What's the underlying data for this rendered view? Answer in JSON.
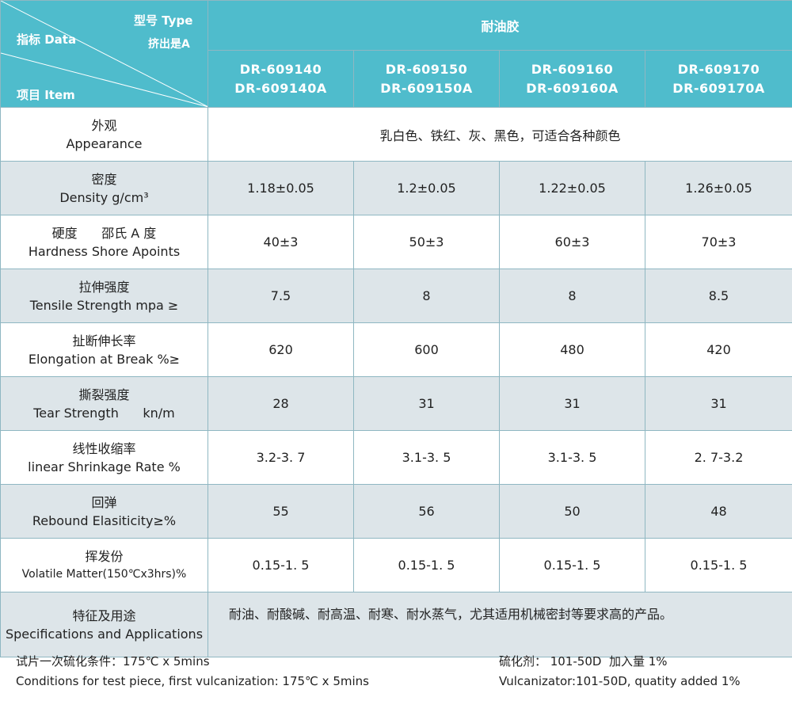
{
  "header": {
    "corner_type_label": "型号 Type",
    "corner_extrusion_label": "挤出是A",
    "corner_data_label": "指标 Data",
    "corner_item_label": "项目 Item",
    "group_title": "耐油胶",
    "models": [
      {
        "line1": "DR-609140",
        "line2": "DR-609140A"
      },
      {
        "line1": "DR-609150",
        "line2": "DR-609150A"
      },
      {
        "line1": "DR-609160",
        "line2": "DR-609160A"
      },
      {
        "line1": "DR-609170",
        "line2": "DR-609170A"
      }
    ]
  },
  "rows": [
    {
      "zh": "外观",
      "en": "Appearance",
      "merged": "乳白色、铁红、灰、黑色，可适合各种颜色"
    },
    {
      "zh": "密度",
      "en": "Density  g/cm³",
      "values": [
        "1.18±0.05",
        "1.2±0.05",
        "1.22±0.05",
        "1.26±0.05"
      ]
    },
    {
      "zh": "硬度      邵氏 A 度",
      "en": "Hardness  Shore Apoints",
      "values": [
        "40±3",
        "50±3",
        "60±3",
        "70±3"
      ]
    },
    {
      "zh": "拉伸强度",
      "en": "Tensile Strength  mpa ≥",
      "values": [
        "7.5",
        "8",
        "8",
        "8.5"
      ]
    },
    {
      "zh": "扯断伸长率",
      "en": "Elongation at Break %≥",
      "values": [
        "620",
        "600",
        "480",
        "420"
      ]
    },
    {
      "zh": "撕裂强度",
      "en": "Tear Strength      kn/m",
      "values": [
        "28",
        "31",
        "31",
        "31"
      ]
    },
    {
      "zh": "线性收缩率",
      "en": "linear Shrinkage Rate %",
      "values": [
        "3.2-3. 7",
        "3.1-3. 5",
        "3.1-3. 5",
        "2. 7-3.2"
      ]
    },
    {
      "zh": "回弹",
      "en": "Rebound Elasiticity≥%",
      "values": [
        "55",
        "56",
        "50",
        "48"
      ]
    },
    {
      "zh": "挥发份",
      "en": "Volatile Matter(150℃x3hrs)%",
      "values": [
        "0.15-1. 5",
        "0.15-1. 5",
        "0.15-1. 5",
        "0.15-1. 5"
      ]
    },
    {
      "zh": "特征及用途",
      "en": "Specifications and Applications",
      "merged": "耐油、耐酸碱、耐高温、耐寒、耐水蒸气，尤其适用机械密封等要求高的产品。"
    }
  ],
  "footer": {
    "conditions_zh": "试片一次硫化条件：175℃ x 5mins",
    "conditions_en": "Conditions for test piece, first vulcanization: 175℃ x 5mins",
    "vulcanizer_zh": "硫化剂： 101-50D  加入量 1%",
    "vulcanizer_en": "Vulcanizator:101-50D, quatity added 1%"
  },
  "colors": {
    "header_bg": "#4fbccc",
    "gray_row": "#dde5e9",
    "border": "#8fb7c2"
  }
}
